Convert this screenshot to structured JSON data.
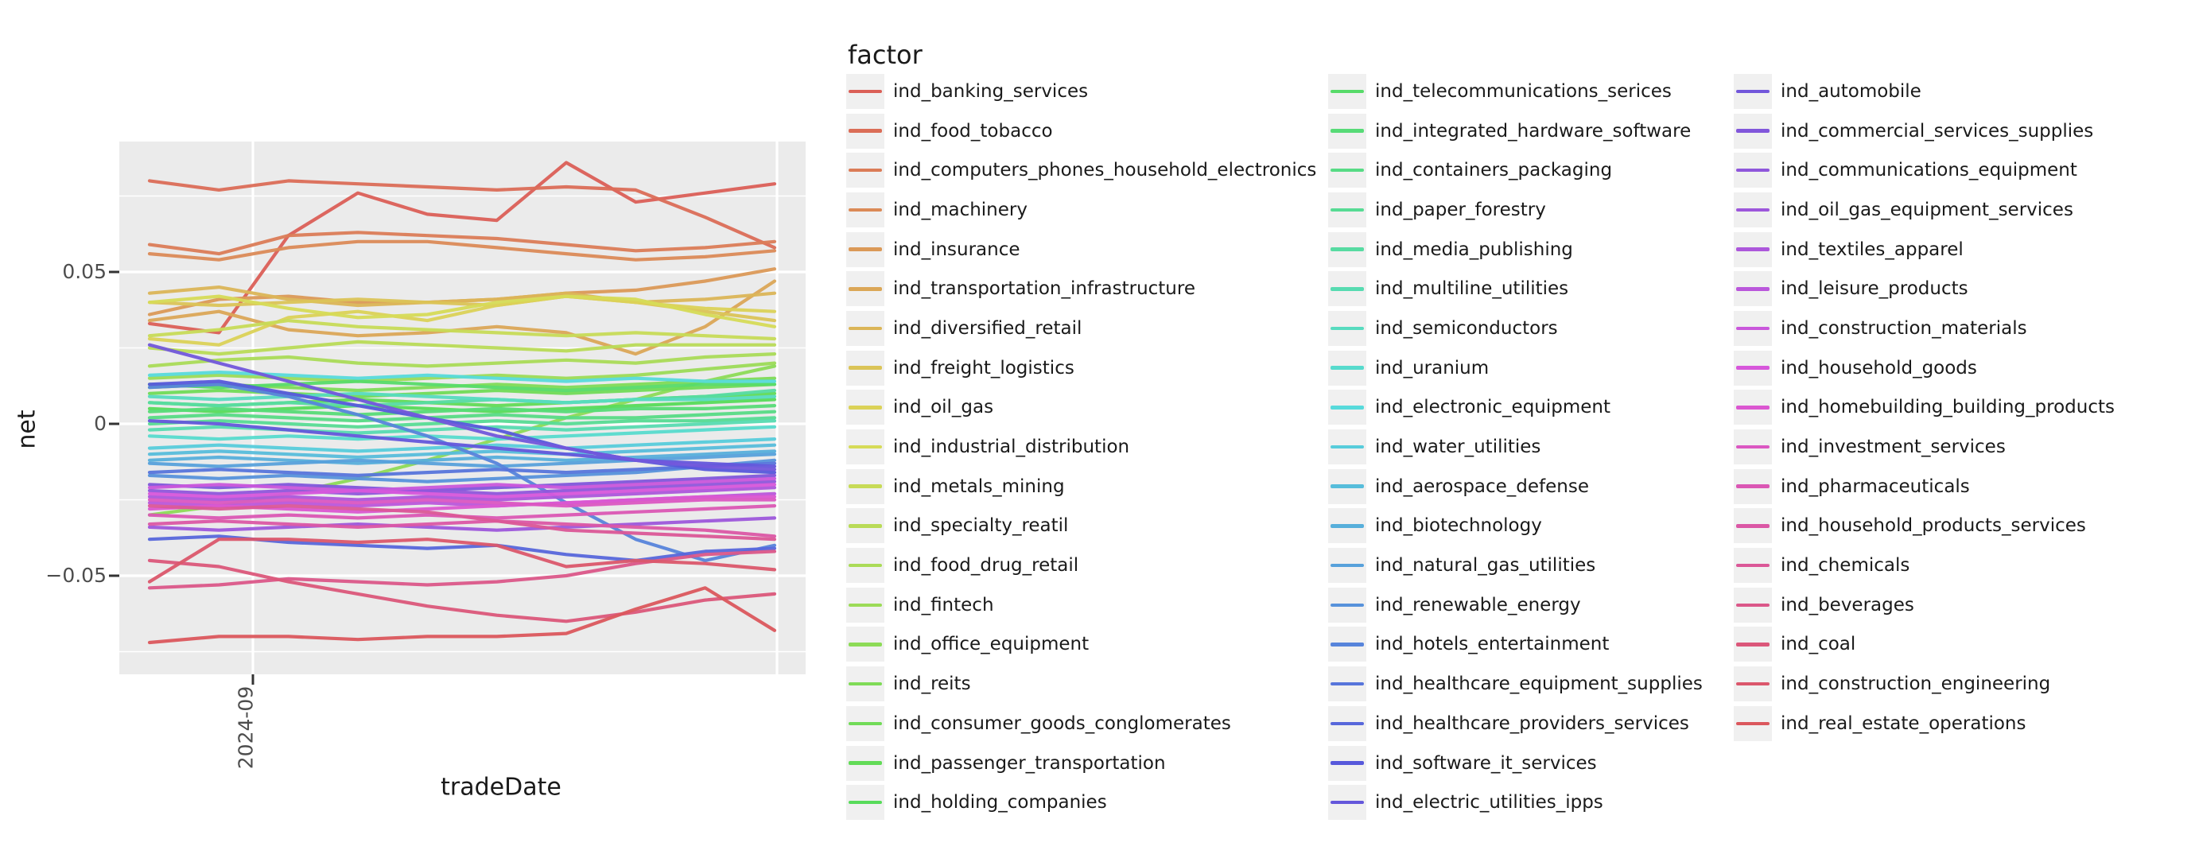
{
  "chart_data": {
    "type": "line",
    "xlabel": "tradeDate",
    "ylabel": "net",
    "legend_title": "factor",
    "x_tick_labels": [
      "2024-09"
    ],
    "y_tick_labels": [
      "0.05",
      "0",
      "−0.05"
    ],
    "y_major_breaks": [
      0.05,
      0,
      -0.05
    ],
    "y_minor_breaks": [
      0.075,
      0.025,
      -0.025,
      -0.075
    ],
    "ylim": [
      -0.082,
      0.093
    ],
    "grid": "on",
    "legend_position": "right",
    "colors": {
      "panel_bg": "#ebebeb",
      "grid": "#ffffff",
      "tick_mark": "#333333",
      "tick_text": "#4d4d4d",
      "text": "#1a1a1a",
      "legend_key_bg": "#f0f0f0"
    },
    "series": [
      {
        "name": "ind_banking_services",
        "color": "#db5f57",
        "values": [
          0.033,
          0.03,
          0.062,
          0.076,
          0.069,
          0.067,
          0.086,
          0.073,
          0.076,
          0.079
        ]
      },
      {
        "name": "ind_food_tobacco",
        "color": "#db6d57",
        "values": [
          0.08,
          0.077,
          0.08,
          0.079,
          0.078,
          0.077,
          0.078,
          0.077,
          0.068,
          0.058
        ]
      },
      {
        "name": "ind_computers_phones_household_electronics",
        "color": "#db7c57",
        "values": [
          0.059,
          0.056,
          0.062,
          0.063,
          0.062,
          0.061,
          0.059,
          0.057,
          0.058,
          0.06
        ]
      },
      {
        "name": "ind_machinery",
        "color": "#db8a57",
        "values": [
          0.056,
          0.054,
          0.058,
          0.06,
          0.06,
          0.058,
          0.056,
          0.054,
          0.055,
          0.057
        ]
      },
      {
        "name": "ind_insurance",
        "color": "#db9957",
        "values": [
          0.036,
          0.041,
          0.042,
          0.04,
          0.04,
          0.041,
          0.043,
          0.044,
          0.047,
          0.051
        ]
      },
      {
        "name": "ind_transportation_infrastructure",
        "color": "#dba757",
        "values": [
          0.034,
          0.037,
          0.031,
          0.029,
          0.03,
          0.032,
          0.03,
          0.023,
          0.032,
          0.047
        ]
      },
      {
        "name": "ind_diversified_retail",
        "color": "#dbb557",
        "values": [
          0.043,
          0.045,
          0.041,
          0.039,
          0.04,
          0.041,
          0.043,
          0.04,
          0.041,
          0.043
        ]
      },
      {
        "name": "ind_freight_logistics",
        "color": "#dbc457",
        "values": [
          0.04,
          0.039,
          0.04,
          0.041,
          0.04,
          0.039,
          0.042,
          0.04,
          0.037,
          0.034
        ]
      },
      {
        "name": "ind_oil_gas",
        "color": "#dbd257",
        "values": [
          0.028,
          0.026,
          0.035,
          0.037,
          0.034,
          0.039,
          0.042,
          0.04,
          0.038,
          0.037
        ]
      },
      {
        "name": "ind_industrial_distribution",
        "color": "#d6db57",
        "values": [
          0.04,
          0.042,
          0.038,
          0.035,
          0.036,
          0.04,
          0.042,
          0.041,
          0.036,
          0.032
        ]
      },
      {
        "name": "ind_metals_mining",
        "color": "#c7db57",
        "values": [
          0.029,
          0.031,
          0.034,
          0.032,
          0.031,
          0.03,
          0.029,
          0.03,
          0.029,
          0.028
        ]
      },
      {
        "name": "ind_specialty_reatil",
        "color": "#b9db57",
        "values": [
          0.025,
          0.023,
          0.025,
          0.027,
          0.026,
          0.025,
          0.024,
          0.026,
          0.026,
          0.026
        ]
      },
      {
        "name": "ind_food_drug_retail",
        "color": "#aadb57",
        "values": [
          0.019,
          0.021,
          0.022,
          0.02,
          0.019,
          0.02,
          0.021,
          0.02,
          0.022,
          0.023
        ]
      },
      {
        "name": "ind_fintech",
        "color": "#9cdb57",
        "values": [
          0.015,
          0.016,
          0.015,
          0.014,
          0.015,
          0.016,
          0.015,
          0.016,
          0.018,
          0.02
        ]
      },
      {
        "name": "ind_office_equipment",
        "color": "#8ddb57",
        "values": [
          -0.03,
          -0.027,
          -0.023,
          -0.018,
          -0.012,
          -0.005,
          0.002,
          0.008,
          0.014,
          0.019
        ]
      },
      {
        "name": "ind_reits",
        "color": "#7fdb57",
        "values": [
          0.012,
          0.013,
          0.012,
          0.011,
          0.012,
          0.013,
          0.012,
          0.013,
          0.014,
          0.015
        ]
      },
      {
        "name": "ind_consumer_goods_conglomerates",
        "color": "#71db57",
        "values": [
          0.01,
          0.011,
          0.01,
          0.009,
          0.01,
          0.011,
          0.01,
          0.011,
          0.012,
          0.013
        ]
      },
      {
        "name": "ind_passenger_transportation",
        "color": "#62db57",
        "values": [
          0.007,
          0.006,
          0.007,
          0.008,
          0.007,
          0.006,
          0.007,
          0.008,
          0.009,
          0.01
        ]
      },
      {
        "name": "ind_holding_companies",
        "color": "#57db5a",
        "values": [
          0.005,
          0.004,
          0.005,
          0.006,
          0.005,
          0.004,
          0.005,
          0.006,
          0.007,
          0.008
        ]
      },
      {
        "name": "ind_telecommunications_serices",
        "color": "#57db69",
        "values": [
          0.013,
          0.012,
          0.013,
          0.014,
          0.013,
          0.012,
          0.011,
          0.012,
          0.013,
          0.013
        ]
      },
      {
        "name": "ind_integrated_hardware_software",
        "color": "#57db77",
        "values": [
          0.004,
          0.005,
          0.004,
          0.003,
          0.004,
          0.005,
          0.004,
          0.005,
          0.005,
          0.006
        ]
      },
      {
        "name": "ind_containers_packaging",
        "color": "#57db85",
        "values": [
          0.002,
          0.003,
          0.002,
          0.001,
          0.002,
          0.003,
          0.002,
          0.002,
          0.003,
          0.004
        ]
      },
      {
        "name": "ind_paper_forestry",
        "color": "#57db94",
        "values": [
          0.0,
          0.001,
          0.0,
          -0.001,
          0.0,
          0.001,
          0.0,
          0.001,
          0.001,
          0.002
        ]
      },
      {
        "name": "ind_media_publishing",
        "color": "#57dba2",
        "values": [
          0.007,
          0.006,
          0.007,
          0.006,
          0.007,
          0.008,
          0.007,
          0.008,
          0.009,
          0.011
        ]
      },
      {
        "name": "ind_multiline_utilities",
        "color": "#57dbb1",
        "values": [
          -0.002,
          -0.001,
          -0.002,
          -0.003,
          -0.002,
          -0.001,
          -0.002,
          -0.001,
          0.0,
          0.001
        ]
      },
      {
        "name": "ind_semiconductors",
        "color": "#57dbbf",
        "values": [
          0.009,
          0.008,
          0.009,
          0.01,
          0.009,
          0.008,
          0.007,
          0.008,
          0.008,
          0.009
        ]
      },
      {
        "name": "ind_uranium",
        "color": "#57dbcd",
        "values": [
          -0.004,
          -0.005,
          -0.004,
          -0.005,
          -0.004,
          -0.005,
          -0.004,
          -0.003,
          -0.002,
          -0.001
        ]
      },
      {
        "name": "ind_electronic_equipment",
        "color": "#57dadb",
        "values": [
          0.016,
          0.017,
          0.016,
          0.015,
          0.016,
          0.015,
          0.014,
          0.015,
          0.014,
          0.014
        ]
      },
      {
        "name": "ind_water_utilities",
        "color": "#57ccdb",
        "values": [
          -0.008,
          -0.007,
          -0.008,
          -0.009,
          -0.008,
          -0.007,
          -0.008,
          -0.007,
          -0.006,
          -0.005
        ]
      },
      {
        "name": "ind_aerospace_defense",
        "color": "#57bddb",
        "values": [
          -0.01,
          -0.009,
          -0.01,
          -0.011,
          -0.01,
          -0.009,
          -0.01,
          -0.009,
          -0.008,
          -0.007
        ]
      },
      {
        "name": "ind_biotechnology",
        "color": "#57afdb",
        "values": [
          -0.012,
          -0.011,
          -0.012,
          -0.013,
          -0.012,
          -0.011,
          -0.012,
          -0.011,
          -0.01,
          -0.009
        ]
      },
      {
        "name": "ind_natural_gas_utilities",
        "color": "#57a1db",
        "values": [
          -0.013,
          -0.014,
          -0.013,
          -0.012,
          -0.013,
          -0.014,
          -0.013,
          -0.012,
          -0.011,
          -0.01
        ]
      },
      {
        "name": "ind_renewable_energy",
        "color": "#5792db",
        "values": [
          -0.017,
          -0.018,
          -0.017,
          -0.018,
          -0.019,
          -0.018,
          -0.017,
          -0.016,
          -0.014,
          -0.012
        ]
      },
      {
        "name": "ind_hotels_entertainment",
        "color": "#5784db",
        "values": [
          0.012,
          0.013,
          0.009,
          0.003,
          -0.004,
          -0.013,
          -0.026,
          -0.038,
          -0.045,
          -0.04
        ]
      },
      {
        "name": "ind_healthcare_equipment_supplies",
        "color": "#5775db",
        "values": [
          -0.016,
          -0.015,
          -0.016,
          -0.017,
          -0.016,
          -0.015,
          -0.016,
          -0.015,
          -0.014,
          -0.013
        ]
      },
      {
        "name": "ind_healthcare_providers_services",
        "color": "#5767db",
        "values": [
          -0.038,
          -0.037,
          -0.039,
          -0.04,
          -0.041,
          -0.04,
          -0.043,
          -0.045,
          -0.042,
          -0.041
        ]
      },
      {
        "name": "ind_software_it_services",
        "color": "#5759db",
        "values": [
          0.013,
          0.014,
          0.01,
          0.006,
          0.002,
          -0.002,
          -0.008,
          -0.012,
          -0.015,
          -0.016
        ]
      },
      {
        "name": "ind_electric_utilities_ipps",
        "color": "#6457db",
        "values": [
          0.001,
          0.0,
          -0.002,
          -0.004,
          -0.006,
          -0.008,
          -0.01,
          -0.012,
          -0.013,
          -0.014
        ]
      },
      {
        "name": "ind_automobile",
        "color": "#7257db",
        "values": [
          0.026,
          0.02,
          0.014,
          0.008,
          0.002,
          -0.004,
          -0.008,
          -0.012,
          -0.014,
          -0.015
        ]
      },
      {
        "name": "ind_commercial_services_supplies",
        "color": "#8157db",
        "values": [
          -0.02,
          -0.021,
          -0.02,
          -0.021,
          -0.022,
          -0.021,
          -0.02,
          -0.019,
          -0.018,
          -0.017
        ]
      },
      {
        "name": "ind_communications_equipment",
        "color": "#8f57db",
        "values": [
          -0.022,
          -0.023,
          -0.022,
          -0.023,
          -0.022,
          -0.023,
          -0.022,
          -0.021,
          -0.02,
          -0.019
        ]
      },
      {
        "name": "ind_oil_gas_equipment_services",
        "color": "#9d57db",
        "values": [
          -0.034,
          -0.035,
          -0.034,
          -0.033,
          -0.034,
          -0.035,
          -0.034,
          -0.033,
          -0.032,
          -0.031
        ]
      },
      {
        "name": "ind_textiles_apparel",
        "color": "#ac57db",
        "values": [
          -0.024,
          -0.025,
          -0.024,
          -0.025,
          -0.024,
          -0.025,
          -0.024,
          -0.023,
          -0.022,
          -0.021
        ]
      },
      {
        "name": "ind_leisure_products",
        "color": "#ba57db",
        "values": [
          -0.026,
          -0.027,
          -0.026,
          -0.027,
          -0.026,
          -0.027,
          -0.026,
          -0.025,
          -0.024,
          -0.023
        ]
      },
      {
        "name": "ind_construction_materials",
        "color": "#c957db",
        "values": [
          -0.021,
          -0.02,
          -0.021,
          -0.022,
          -0.021,
          -0.02,
          -0.021,
          -0.02,
          -0.019,
          -0.018
        ]
      },
      {
        "name": "ind_household_goods",
        "color": "#d757db",
        "values": [
          -0.023,
          -0.024,
          -0.023,
          -0.022,
          -0.023,
          -0.024,
          -0.023,
          -0.022,
          -0.021,
          -0.02
        ]
      },
      {
        "name": "ind_homebuilding_building_products",
        "color": "#db57d1",
        "values": [
          -0.028,
          -0.027,
          -0.028,
          -0.029,
          -0.028,
          -0.027,
          -0.026,
          -0.025,
          -0.024,
          -0.024
        ]
      },
      {
        "name": "ind_investment_services",
        "color": "#db57c2",
        "values": [
          -0.025,
          -0.026,
          -0.025,
          -0.026,
          -0.025,
          -0.026,
          -0.027,
          -0.026,
          -0.025,
          -0.025
        ]
      },
      {
        "name": "ind_pharmaceuticals",
        "color": "#db57b4",
        "values": [
          -0.03,
          -0.031,
          -0.03,
          -0.031,
          -0.03,
          -0.031,
          -0.03,
          -0.029,
          -0.028,
          -0.027
        ]
      },
      {
        "name": "ind_household_products_services",
        "color": "#db57a5",
        "values": [
          -0.033,
          -0.032,
          -0.033,
          -0.034,
          -0.033,
          -0.032,
          -0.033,
          -0.034,
          -0.035,
          -0.037
        ]
      },
      {
        "name": "ind_chemicals",
        "color": "#db5797",
        "values": [
          -0.027,
          -0.028,
          -0.027,
          -0.028,
          -0.029,
          -0.032,
          -0.035,
          -0.036,
          -0.037,
          -0.038
        ]
      },
      {
        "name": "ind_beverages",
        "color": "#db5789",
        "values": [
          -0.054,
          -0.053,
          -0.051,
          -0.052,
          -0.053,
          -0.052,
          -0.05,
          -0.046,
          -0.043,
          -0.042
        ]
      },
      {
        "name": "ind_coal",
        "color": "#db577a",
        "values": [
          -0.045,
          -0.047,
          -0.052,
          -0.056,
          -0.06,
          -0.063,
          -0.065,
          -0.062,
          -0.058,
          -0.056
        ]
      },
      {
        "name": "ind_construction_engineering",
        "color": "#db576c",
        "values": [
          -0.052,
          -0.038,
          -0.038,
          -0.039,
          -0.038,
          -0.04,
          -0.047,
          -0.045,
          -0.046,
          -0.048
        ]
      },
      {
        "name": "ind_real_estate_operations",
        "color": "#db575d",
        "values": [
          -0.072,
          -0.07,
          -0.07,
          -0.071,
          -0.07,
          -0.07,
          -0.069,
          -0.061,
          -0.054,
          -0.068
        ]
      }
    ]
  }
}
